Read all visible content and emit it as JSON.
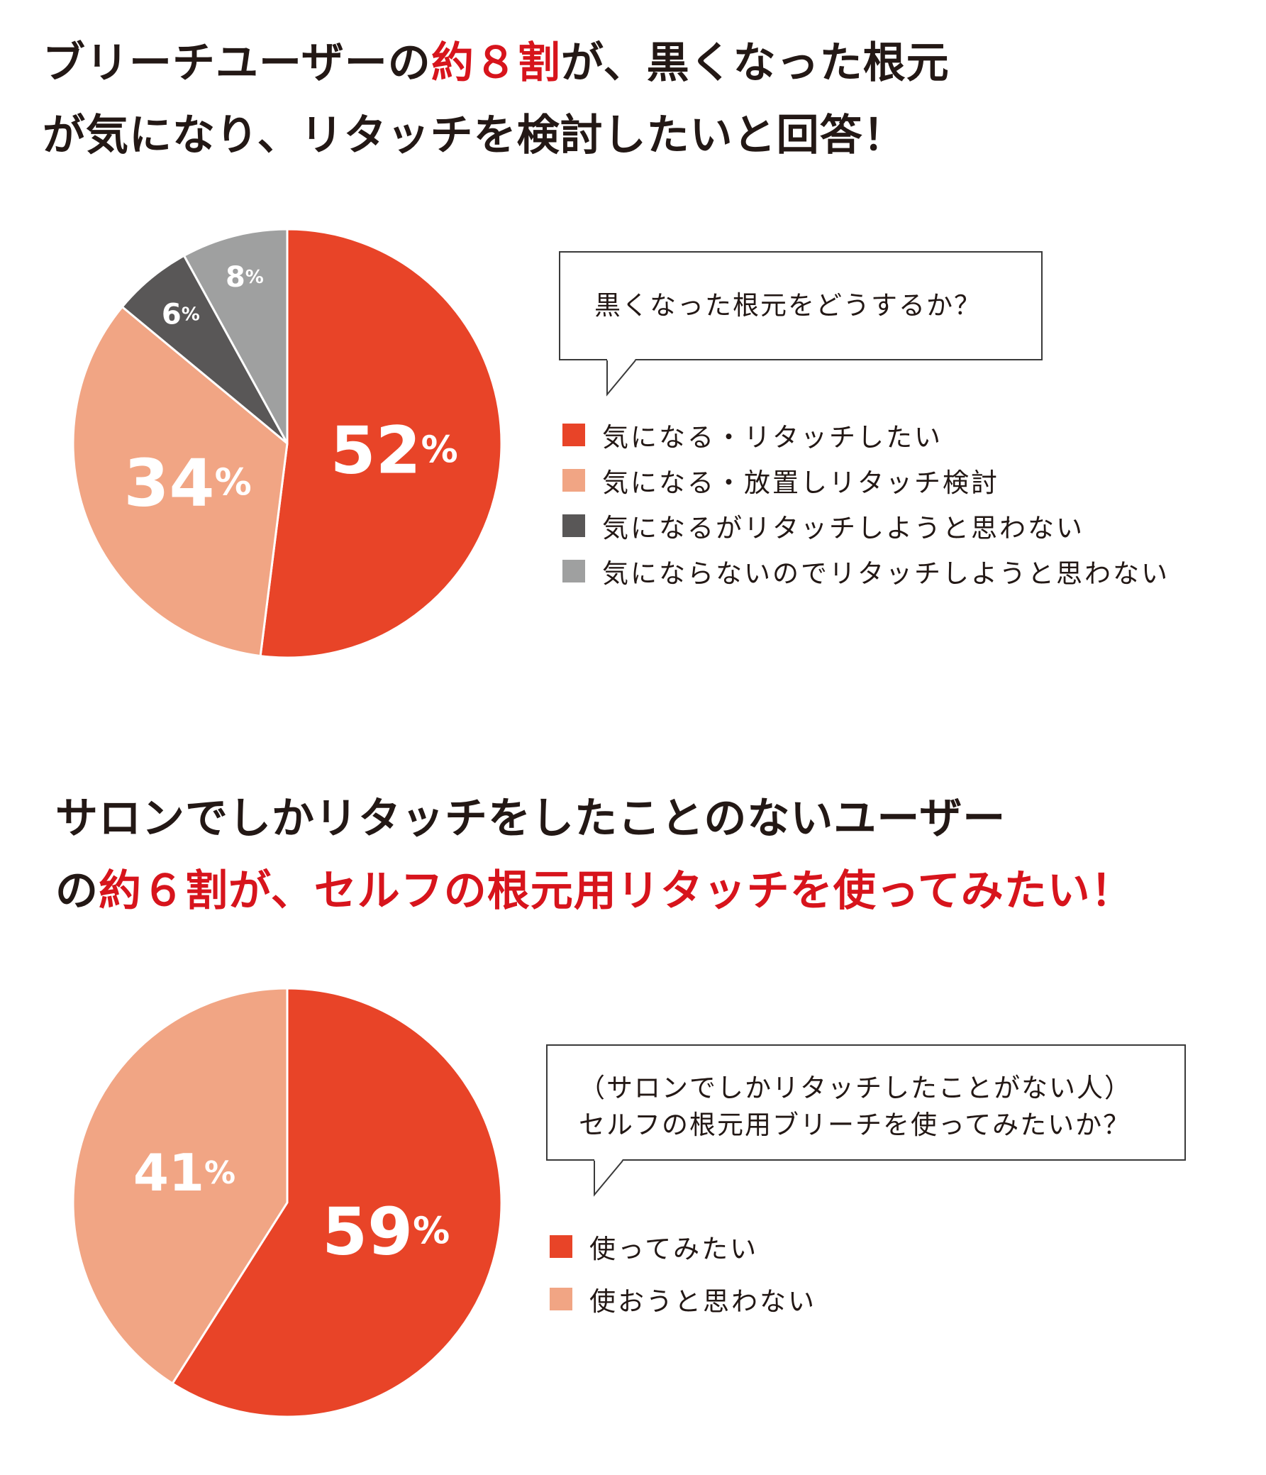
{
  "colors": {
    "red": "#e84428",
    "salmon": "#f1a584",
    "dark": "#595757",
    "gray": "#9fa0a0",
    "headline": "#231815",
    "accent": "#d7141c"
  },
  "section1": {
    "headline_line1_a": "ブリーチユーザーの",
    "headline_line1_b": "約８割",
    "headline_line1_c": "が、黒くなった根元",
    "headline_line2": "が気になり、リタッチを検討したいと回答！",
    "question": "黒くなった根元をどうするか？"
  },
  "section2": {
    "headline_line1": "サロンでしかリタッチをしたことのないユーザー",
    "headline_line2_a": "の",
    "headline_line2_b": "約６割が、セルフの根元用リタッチを使ってみたい！",
    "question_line1": "（サロンでしかリタッチしたことがない人）",
    "question_line2": "セルフの根元用ブリーチを使ってみたいか？"
  },
  "chart_data": [
    {
      "type": "pie",
      "title": "黒くなった根元をどうするか？",
      "categories": [
        "気になる・リタッチしたい",
        "気になる・放置しリタッチ検討",
        "気になるがリタッチしようと思わない",
        "気にならないのでリタッチしようと思わない"
      ],
      "values": [
        52,
        34,
        6,
        8
      ],
      "labels": [
        "52",
        "34",
        "6",
        "8"
      ],
      "unit": "%",
      "colors": [
        "#e84428",
        "#f1a584",
        "#595757",
        "#9fa0a0"
      ],
      "legend": "right"
    },
    {
      "type": "pie",
      "title": "セルフの根元用ブリーチを使ってみたいか？",
      "categories": [
        "使ってみたい",
        "使おうと思わない"
      ],
      "values": [
        59,
        41
      ],
      "labels": [
        "59",
        "41"
      ],
      "unit": "%",
      "colors": [
        "#e84428",
        "#f1a584"
      ],
      "legend": "right"
    }
  ]
}
